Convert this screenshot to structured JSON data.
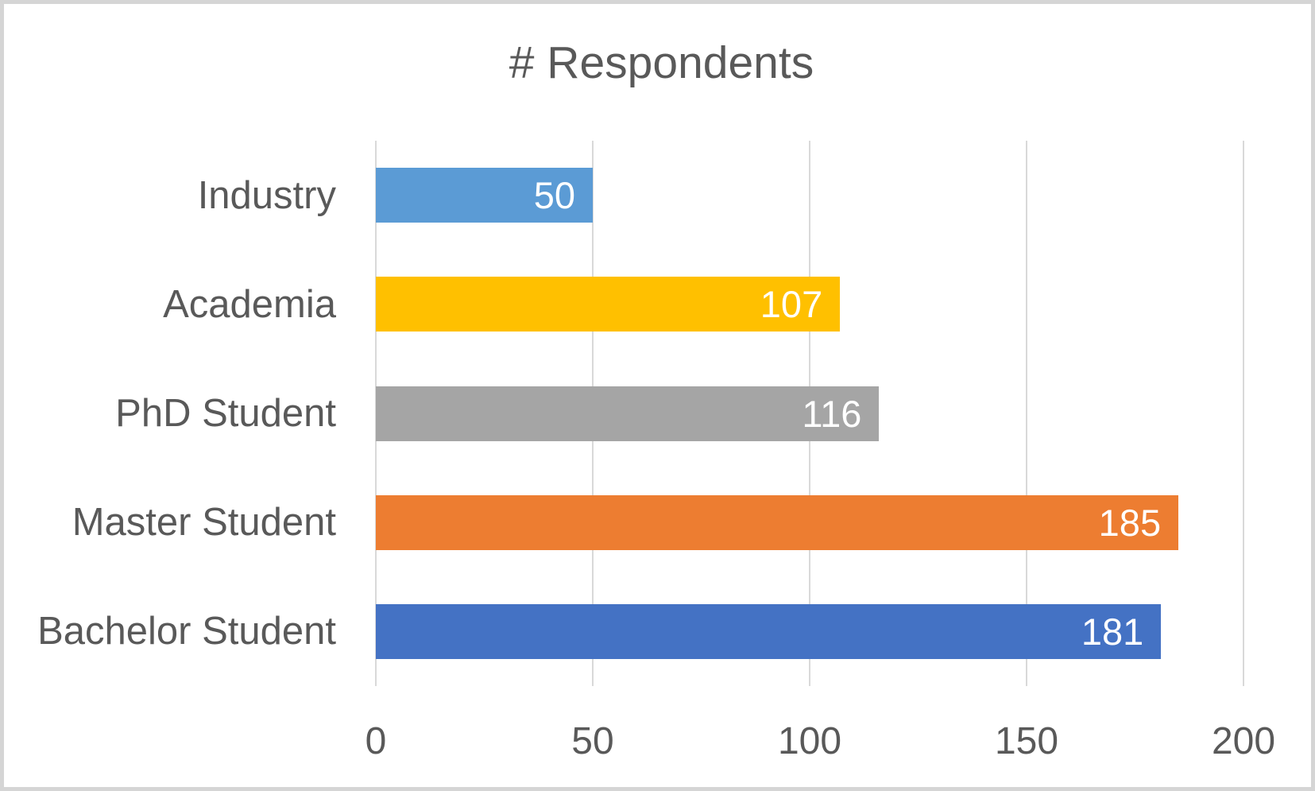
{
  "chart_data": {
    "type": "bar",
    "orientation": "horizontal",
    "title": "# Respondents",
    "categories": [
      "Industry",
      "Academia",
      "PhD Student",
      "Master Student",
      "Bachelor Student"
    ],
    "values": [
      50,
      107,
      116,
      185,
      181
    ],
    "data_labels": [
      "50",
      "107",
      "116",
      "185",
      "181"
    ],
    "series": [
      {
        "name": "# Respondents",
        "values": [
          50,
          107,
          116,
          185,
          181
        ]
      }
    ],
    "bar_colors": [
      "#5b9bd5",
      "#ffc000",
      "#a5a5a5",
      "#ed7d31",
      "#4472c4"
    ],
    "data_label_position": "inside-end",
    "data_label_color": "#ffffff",
    "xlabel": "",
    "ylabel": "",
    "xlim": [
      0,
      200
    ],
    "x_ticks": [
      0,
      50,
      100,
      150,
      200
    ],
    "x_tick_labels": [
      "0",
      "50",
      "100",
      "150",
      "200"
    ],
    "grid": "vertical-major-gridlines",
    "gridline_color": "#d9d9d9",
    "legend_position": "none",
    "text_color": "#595959",
    "frame_border_color": "#d5d5d5",
    "background_color": "#ffffff"
  }
}
